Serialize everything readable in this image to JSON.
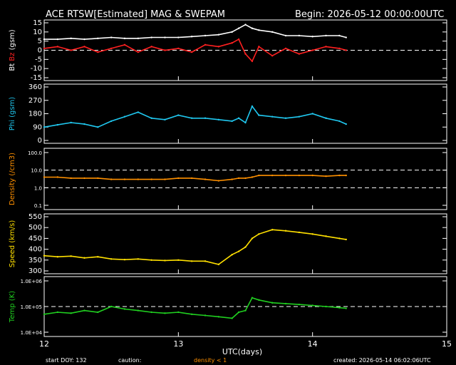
{
  "header": {
    "title": "ACE RTSW[Estimated] MAG & SWEPAM",
    "begin": "Begin: 2026-05-12 00:00:00UTC"
  },
  "footer": {
    "start_doy": "start DOY: 132",
    "caution_label": "caution:",
    "caution_text": "density < 1",
    "created": "created: 2026-05-14 06:02:06UTC"
  },
  "colors": {
    "background": "#000000",
    "axes": "#ffffff",
    "bt": "#ffffff",
    "bz": "#ff2020",
    "phi": "#20c8f0",
    "density": "#ff9000",
    "speed": "#ffe000",
    "temp": "#20d020"
  },
  "chart_data": [
    {
      "type": "line",
      "panel": "bt-bz",
      "ylabel_parts": [
        "Bt",
        "Bz",
        "(gsm)"
      ],
      "ylim": [
        -15,
        15
      ],
      "yticks": [
        "15",
        "10",
        "5",
        "0",
        "-5",
        "-10",
        "-15"
      ],
      "reference_lines": [
        0
      ],
      "x": [
        12.0,
        12.1,
        12.2,
        12.3,
        12.4,
        12.5,
        12.6,
        12.7,
        12.8,
        12.9,
        13.0,
        13.1,
        13.2,
        13.3,
        13.4,
        13.45,
        13.5,
        13.55,
        13.6,
        13.7,
        13.8,
        13.9,
        14.0,
        14.1,
        14.2,
        14.25
      ],
      "series": [
        {
          "name": "Bt",
          "values": [
            6,
            6,
            6.5,
            6,
            6.5,
            7,
            6.5,
            6.5,
            7,
            7,
            7,
            7.5,
            8,
            8.5,
            10,
            12,
            14,
            12,
            11,
            10,
            8,
            8,
            7.5,
            8,
            8,
            7
          ]
        },
        {
          "name": "Bz",
          "values": [
            1,
            2,
            0,
            2,
            -1,
            1,
            3,
            -1,
            2,
            0,
            1,
            -1,
            3,
            2,
            4,
            6,
            -2,
            -6,
            2,
            -3,
            1,
            -2,
            0,
            2,
            1,
            0
          ]
        }
      ]
    },
    {
      "type": "line",
      "panel": "phi",
      "ylabel": "Phi (gsm)",
      "ylim": [
        0,
        360
      ],
      "yticks": [
        "360",
        "270",
        "180",
        "90",
        "0"
      ],
      "x": [
        12.0,
        12.1,
        12.2,
        12.3,
        12.4,
        12.5,
        12.6,
        12.7,
        12.8,
        12.9,
        13.0,
        13.1,
        13.2,
        13.3,
        13.4,
        13.45,
        13.5,
        13.55,
        13.6,
        13.7,
        13.8,
        13.9,
        14.0,
        14.1,
        14.2,
        14.25
      ],
      "values": [
        90,
        105,
        120,
        110,
        90,
        130,
        160,
        190,
        150,
        140,
        170,
        150,
        150,
        140,
        130,
        150,
        120,
        230,
        170,
        160,
        150,
        160,
        180,
        150,
        130,
        110
      ]
    },
    {
      "type": "line",
      "panel": "density",
      "ylabel": "Density (/cm3)",
      "scale": "log",
      "ylim": [
        0.1,
        100
      ],
      "yticks": [
        "100.0",
        "10.0",
        "1.0",
        "0.1"
      ],
      "reference_lines": [
        10,
        1
      ],
      "x": [
        12.0,
        12.1,
        12.2,
        12.3,
        12.4,
        12.5,
        12.6,
        12.7,
        12.8,
        12.9,
        13.0,
        13.1,
        13.2,
        13.3,
        13.4,
        13.45,
        13.5,
        13.55,
        13.6,
        13.7,
        13.8,
        13.9,
        14.0,
        14.1,
        14.2,
        14.25
      ],
      "values": [
        4.0,
        4.0,
        3.5,
        3.5,
        3.5,
        3.0,
        3.0,
        3.0,
        3.0,
        3.0,
        3.5,
        3.5,
        3.0,
        2.5,
        3.0,
        3.5,
        3.5,
        4.0,
        5.0,
        5.0,
        5.0,
        5.0,
        5.0,
        4.5,
        5.0,
        5.0
      ]
    },
    {
      "type": "line",
      "panel": "speed",
      "ylabel": "Speed (km/s)",
      "ylim": [
        300,
        550
      ],
      "yticks": [
        "550",
        "500",
        "450",
        "400",
        "350",
        "300"
      ],
      "x": [
        12.0,
        12.1,
        12.2,
        12.3,
        12.4,
        12.5,
        12.6,
        12.7,
        12.8,
        12.9,
        13.0,
        13.1,
        13.2,
        13.3,
        13.4,
        13.45,
        13.5,
        13.55,
        13.6,
        13.7,
        13.8,
        13.9,
        14.0,
        14.1,
        14.2,
        14.25
      ],
      "values": [
        370,
        365,
        368,
        360,
        365,
        355,
        352,
        355,
        350,
        348,
        350,
        345,
        345,
        330,
        375,
        390,
        410,
        450,
        470,
        490,
        485,
        478,
        470,
        460,
        450,
        445
      ]
    },
    {
      "type": "line",
      "panel": "temp",
      "ylabel": "Temp (K)",
      "scale": "log",
      "ylim": [
        10000,
        1000000
      ],
      "yticks": [
        "1.0E+06",
        "1.0E+05",
        "1.0E+04"
      ],
      "reference_lines": [
        100000
      ],
      "x": [
        12.0,
        12.1,
        12.2,
        12.3,
        12.4,
        12.5,
        12.6,
        12.7,
        12.8,
        12.9,
        13.0,
        13.1,
        13.2,
        13.3,
        13.4,
        13.45,
        13.5,
        13.55,
        13.6,
        13.7,
        13.8,
        13.9,
        14.0,
        14.1,
        14.2,
        14.25
      ],
      "values": [
        50000,
        60000,
        55000,
        70000,
        60000,
        100000,
        80000,
        70000,
        60000,
        55000,
        60000,
        50000,
        45000,
        40000,
        35000,
        60000,
        70000,
        220000,
        180000,
        140000,
        130000,
        120000,
        110000,
        100000,
        90000,
        85000
      ]
    }
  ],
  "x_axis": {
    "label": "UTC(days)",
    "xlim": [
      12,
      15
    ],
    "ticks": [
      "12",
      "13",
      "14",
      "15"
    ]
  }
}
